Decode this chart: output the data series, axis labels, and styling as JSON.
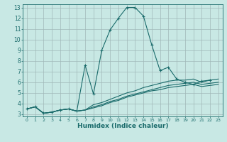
{
  "xlabel": "Humidex (Indice chaleur)",
  "ylabel": "",
  "xlim": [
    -0.5,
    23.5
  ],
  "ylim": [
    2.8,
    13.3
  ],
  "yticks": [
    3,
    4,
    5,
    6,
    7,
    8,
    9,
    10,
    11,
    12,
    13
  ],
  "xticks": [
    0,
    1,
    2,
    3,
    4,
    5,
    6,
    7,
    8,
    9,
    10,
    11,
    12,
    13,
    14,
    15,
    16,
    17,
    18,
    19,
    20,
    21,
    22,
    23
  ],
  "background_color": "#c8e8e4",
  "grid_color": "#a0b8b8",
  "line_color": "#1a6b6b",
  "lines": [
    {
      "x": [
        0,
        1,
        2,
        3,
        4,
        5,
        6,
        7,
        8,
        9,
        10,
        11,
        12,
        13,
        14,
        15,
        16,
        17,
        18,
        19,
        20,
        21,
        22
      ],
      "y": [
        3.5,
        3.7,
        3.1,
        3.2,
        3.4,
        3.5,
        3.3,
        7.6,
        4.9,
        9.0,
        10.9,
        12.0,
        13.0,
        13.0,
        12.2,
        9.5,
        7.1,
        7.4,
        6.3,
        6.0,
        5.8,
        6.1,
        6.2
      ],
      "marker": true
    },
    {
      "x": [
        0,
        1,
        2,
        3,
        4,
        5,
        6,
        7,
        8,
        9,
        10,
        11,
        12,
        13,
        14,
        15,
        16,
        17,
        18,
        19,
        20,
        21,
        22,
        23
      ],
      "y": [
        3.5,
        3.7,
        3.1,
        3.2,
        3.4,
        3.5,
        3.3,
        3.4,
        3.9,
        4.1,
        4.4,
        4.7,
        5.0,
        5.2,
        5.5,
        5.7,
        5.9,
        6.1,
        6.2,
        6.2,
        6.3,
        6.0,
        6.2,
        6.3
      ],
      "marker": false
    },
    {
      "x": [
        0,
        1,
        2,
        3,
        4,
        5,
        6,
        7,
        8,
        9,
        10,
        11,
        12,
        13,
        14,
        15,
        16,
        17,
        18,
        19,
        20,
        21,
        22,
        23
      ],
      "y": [
        3.5,
        3.7,
        3.1,
        3.2,
        3.4,
        3.5,
        3.3,
        3.4,
        3.7,
        3.9,
        4.2,
        4.4,
        4.7,
        4.9,
        5.1,
        5.3,
        5.5,
        5.7,
        5.8,
        5.9,
        6.0,
        5.8,
        5.9,
        6.0
      ],
      "marker": false
    },
    {
      "x": [
        0,
        1,
        2,
        3,
        4,
        5,
        6,
        7,
        8,
        9,
        10,
        11,
        12,
        13,
        14,
        15,
        16,
        17,
        18,
        19,
        20,
        21,
        22,
        23
      ],
      "y": [
        3.5,
        3.7,
        3.1,
        3.2,
        3.4,
        3.5,
        3.3,
        3.4,
        3.6,
        3.8,
        4.1,
        4.3,
        4.6,
        4.8,
        5.0,
        5.2,
        5.3,
        5.5,
        5.6,
        5.7,
        5.8,
        5.6,
        5.7,
        5.8
      ],
      "marker": false
    }
  ]
}
